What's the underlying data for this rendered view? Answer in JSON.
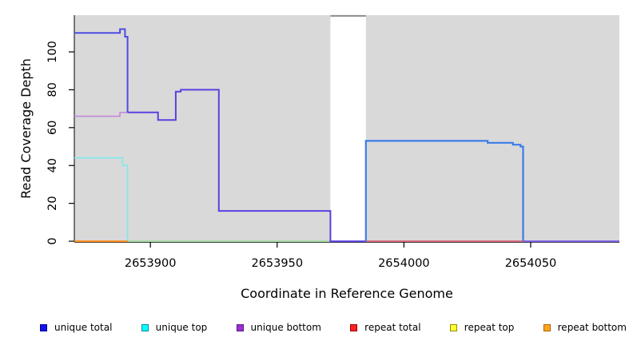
{
  "chart_data": {
    "type": "step-line",
    "title": "",
    "xlabel": "Coordinate in Reference Genome",
    "ylabel": "Read Coverage Depth",
    "xlim": [
      2653870,
      2654085
    ],
    "ylim": [
      -0.4,
      119.4
    ],
    "grid": false,
    "panel_bg": "#d9d9d9",
    "axis_color": "#000000",
    "xticks": [
      {
        "value": 2653900,
        "label": "2653900"
      },
      {
        "value": 2653950,
        "label": "2653950"
      },
      {
        "value": 2654000,
        "label": "2654000"
      },
      {
        "value": 2654050,
        "label": "2654050"
      }
    ],
    "yticks": [
      {
        "value": 0,
        "label": "0"
      },
      {
        "value": 20,
        "label": "20"
      },
      {
        "value": 40,
        "label": "40"
      },
      {
        "value": 60,
        "label": "60"
      },
      {
        "value": 80,
        "label": "80"
      },
      {
        "value": 100,
        "label": "100"
      }
    ],
    "gap_region": {
      "x0": 2653971,
      "x1": 2653985,
      "fill": "#ffffff"
    },
    "series": [
      {
        "name": "unique-top",
        "color": "#80eaec",
        "width": 1.6,
        "points": [
          [
            2653870,
            44
          ],
          [
            2653889,
            44
          ],
          [
            2653889,
            40
          ],
          [
            2653891,
            40
          ],
          [
            2653891,
            0
          ]
        ]
      },
      {
        "name": "unique-bottom",
        "color": "#c488dc",
        "width": 1.6,
        "points": [
          [
            2653870,
            66
          ],
          [
            2653888,
            66
          ],
          [
            2653888,
            68
          ],
          [
            2653891,
            68
          ]
        ]
      },
      {
        "name": "zero-line-green",
        "color": "#9ad89a",
        "width": 1.6,
        "points": [
          [
            2653891,
            0
          ],
          [
            2653971,
            0
          ]
        ]
      },
      {
        "name": "repeat-bottom-zero",
        "color": "#ff8c1a",
        "width": 2,
        "points": [
          [
            2653870,
            0
          ],
          [
            2653891,
            0
          ]
        ]
      },
      {
        "name": "unique-total-left",
        "color": "#4d4de2",
        "width": 2,
        "points": [
          [
            2653870,
            110
          ],
          [
            2653888,
            110
          ],
          [
            2653888,
            112
          ],
          [
            2653890,
            112
          ],
          [
            2653890,
            108
          ],
          [
            2653891,
            108
          ],
          [
            2653891,
            68
          ]
        ]
      },
      {
        "name": "unique-total-bottom-merged",
        "color": "#5b40e0",
        "width": 2,
        "points": [
          [
            2653891,
            68
          ],
          [
            2653903,
            68
          ],
          [
            2653903,
            64
          ],
          [
            2653910,
            64
          ],
          [
            2653910,
            79
          ],
          [
            2653912,
            79
          ],
          [
            2653912,
            80
          ],
          [
            2653927,
            80
          ],
          [
            2653927,
            16
          ],
          [
            2653971,
            16
          ],
          [
            2653971,
            0
          ],
          [
            2653985,
            0
          ]
        ]
      },
      {
        "name": "repeat-total-zero",
        "color": "#d85068",
        "width": 1.6,
        "points": [
          [
            2653985,
            0
          ],
          [
            2654047,
            0
          ]
        ]
      },
      {
        "name": "unique-total-right",
        "color": "#3b7ce8",
        "width": 2.2,
        "points": [
          [
            2653985,
            0
          ],
          [
            2653985,
            53
          ],
          [
            2654033,
            53
          ],
          [
            2654033,
            52
          ],
          [
            2654043,
            52
          ],
          [
            2654043,
            51
          ],
          [
            2654046,
            51
          ],
          [
            2654046,
            50
          ],
          [
            2654047,
            50
          ],
          [
            2654047,
            0
          ]
        ]
      },
      {
        "name": "zero-line-tail",
        "color": "#7a5ce4",
        "width": 2,
        "points": [
          [
            2654047,
            0
          ],
          [
            2654085,
            0
          ]
        ]
      },
      {
        "name": "clipped-top-line",
        "color": "#8c8c8c",
        "width": 2,
        "points": [
          [
            2653971,
            119
          ],
          [
            2653985,
            119
          ]
        ]
      }
    ]
  },
  "legend": {
    "items": [
      {
        "label": "unique total",
        "color": "#1414e6",
        "border": "#0000a0"
      },
      {
        "label": "unique top",
        "color": "#00ffff",
        "border": "#008b9e"
      },
      {
        "label": "unique bottom",
        "color": "#9a30d0",
        "border": "#5c1487"
      },
      {
        "label": "repeat total",
        "color": "#ff2020",
        "border": "#990000"
      },
      {
        "label": "repeat top",
        "color": "#ffff33",
        "border": "#8f8f00"
      },
      {
        "label": "repeat bottom",
        "color": "#ffa520",
        "border": "#a96400"
      }
    ]
  }
}
